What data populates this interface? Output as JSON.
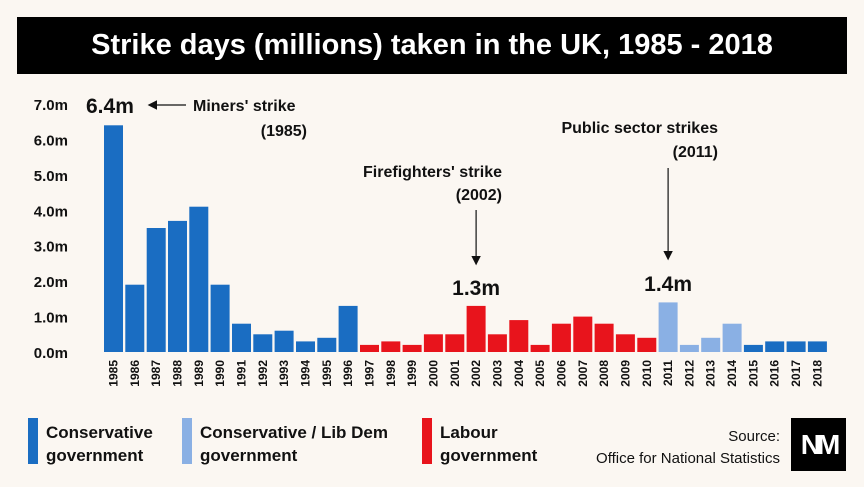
{
  "title": "Strike days (millions) taken in the UK, 1985 - 2018",
  "legend": [
    {
      "line1": "Conservative",
      "line2": "government",
      "color": "#1a6dc2"
    },
    {
      "line1": "Conservative / Lib Dem",
      "line2": "government",
      "color": "#8ab0e4"
    },
    {
      "line1": "Labour",
      "line2": "government",
      "color": "#e8141c"
    }
  ],
  "source": {
    "line1": "Source:",
    "line2": "Office for National Statistics"
  },
  "logo": {
    "text": "NM",
    "icon": "nm-logo-icon"
  },
  "chart_data": {
    "type": "bar",
    "title": "Strike days (millions) taken in the UK, 1985 - 2018",
    "xlabel": "",
    "ylabel": "",
    "ylim": [
      0,
      7
    ],
    "y_ticks": [
      "0.0m",
      "1.0m",
      "2.0m",
      "3.0m",
      "4.0m",
      "5.0m",
      "6.0m",
      "7.0m"
    ],
    "grid": false,
    "categories": [
      "1985",
      "1986",
      "1987",
      "1988",
      "1989",
      "1990",
      "1991",
      "1992",
      "1993",
      "1994",
      "1995",
      "1996",
      "1997",
      "1998",
      "1999",
      "2000",
      "2001",
      "2002",
      "2003",
      "2004",
      "2005",
      "2006",
      "2007",
      "2008",
      "2009",
      "2010",
      "2011",
      "2012",
      "2013",
      "2014",
      "2015",
      "2016",
      "2017",
      "2018"
    ],
    "values": [
      6.4,
      1.9,
      3.5,
      3.7,
      4.1,
      1.9,
      0.8,
      0.5,
      0.6,
      0.3,
      0.4,
      1.3,
      0.2,
      0.3,
      0.2,
      0.5,
      0.5,
      1.3,
      0.5,
      0.9,
      0.2,
      0.8,
      1.0,
      0.8,
      0.5,
      0.4,
      1.4,
      0.2,
      0.4,
      0.8,
      0.2,
      0.3,
      0.3,
      0.3
    ],
    "government": [
      "con",
      "con",
      "con",
      "con",
      "con",
      "con",
      "con",
      "con",
      "con",
      "con",
      "con",
      "con",
      "lab",
      "lab",
      "lab",
      "lab",
      "lab",
      "lab",
      "lab",
      "lab",
      "lab",
      "lab",
      "lab",
      "lab",
      "lab",
      "lab",
      "coalition",
      "coalition",
      "coalition",
      "coalition",
      "con",
      "con",
      "con",
      "con"
    ],
    "colors": {
      "con": "#1a6dc2",
      "coalition": "#8ab0e4",
      "lab": "#e8141c"
    },
    "annotations": [
      {
        "label": "Miners' strike",
        "year_label": "(1985)",
        "value_label": "6.4m",
        "category": "1985"
      },
      {
        "label": "Firefighters' strike",
        "year_label": "(2002)",
        "value_label": "1.3m",
        "category": "2002"
      },
      {
        "label": "Public sector strikes",
        "year_label": "(2011)",
        "value_label": "1.4m",
        "category": "2011"
      }
    ]
  }
}
